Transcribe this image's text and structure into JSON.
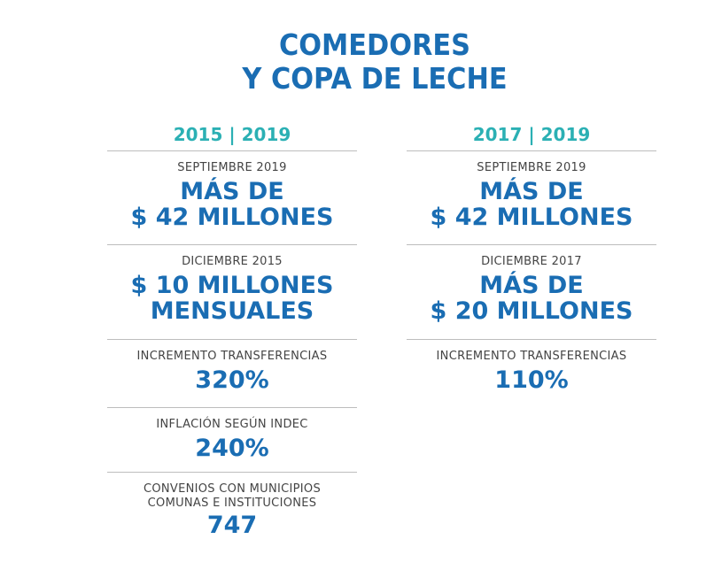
{
  "title": {
    "line1": "COMEDORES",
    "line2": "Y COPA DE LECHE"
  },
  "columns": [
    {
      "header": "2015 | 2019",
      "sections": [
        {
          "label": "SEPTIEMBRE 2019",
          "value1": "MÁS DE",
          "value2": "$ 42 MILLONES"
        },
        {
          "label": "DICIEMBRE 2015",
          "value1": "$ 10 MILLONES",
          "value2": "MENSUALES"
        },
        {
          "label": "INCREMENTO TRANSFERENCIAS",
          "value1": "320%"
        },
        {
          "label": "INFLACIÓN SEGÚN INDEC",
          "value1": "240%"
        },
        {
          "label": "CONVENIOS CON MUNICIPIOS",
          "label2": "COMUNAS E INSTITUCIONES",
          "value1": "747"
        }
      ]
    },
    {
      "header": "2017 | 2019",
      "sections": [
        {
          "label": "SEPTIEMBRE 2019",
          "value1": "MÁS DE",
          "value2": "$ 42 MILLONES"
        },
        {
          "label": "DICIEMBRE 2017",
          "value1": "MÁS DE",
          "value2": "$ 20 MILLONES"
        },
        {
          "label": "INCREMENTO TRANSFERENCIAS",
          "value1": "110%"
        }
      ]
    }
  ]
}
